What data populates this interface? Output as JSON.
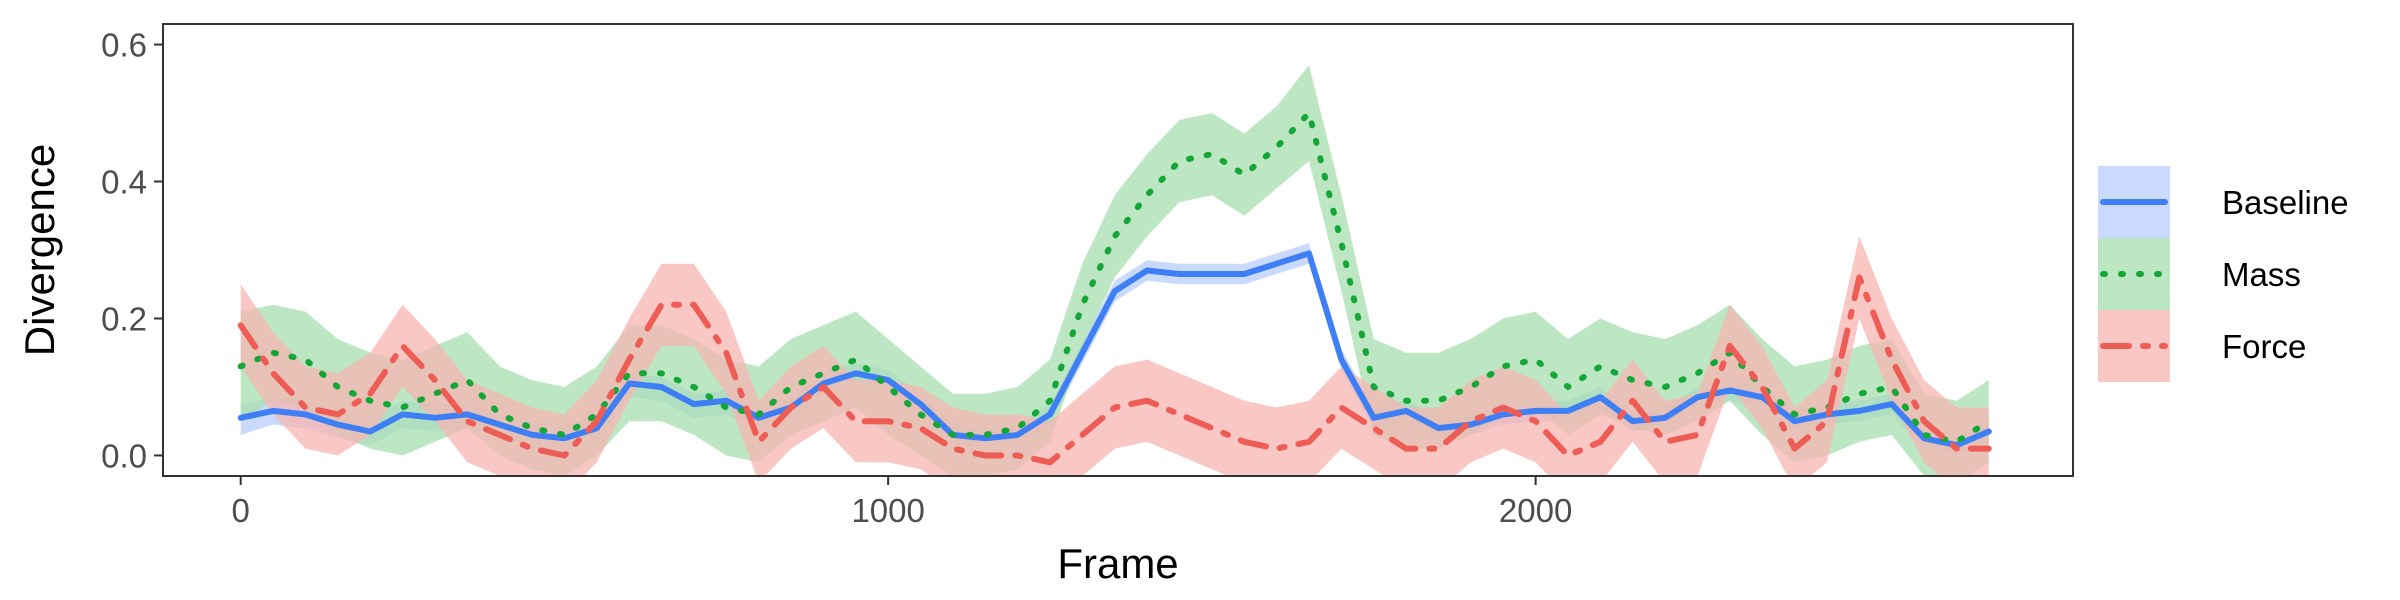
{
  "chart_data": {
    "type": "line",
    "xlabel": "Frame",
    "ylabel": "Divergence",
    "xlim": [
      -120,
      2830
    ],
    "ylim": [
      -0.03,
      0.63
    ],
    "xticks": [
      0,
      1000,
      2000
    ],
    "yticks": [
      0.0,
      0.2,
      0.4,
      0.6
    ],
    "xtick_labels": [
      "0",
      "1000",
      "2000"
    ],
    "ytick_labels": [
      "0.0",
      "0.2",
      "0.4",
      "0.6"
    ],
    "grid": false,
    "legend_position": "right",
    "x": [
      0,
      50,
      100,
      150,
      200,
      250,
      300,
      350,
      400,
      450,
      500,
      550,
      600,
      650,
      700,
      750,
      800,
      850,
      900,
      950,
      1000,
      1050,
      1100,
      1150,
      1200,
      1250,
      1300,
      1350,
      1400,
      1450,
      1500,
      1550,
      1600,
      1650,
      1700,
      1750,
      1800,
      1850,
      1900,
      1950,
      2000,
      2050,
      2100,
      2150,
      2200,
      2250,
      2300,
      2350,
      2400,
      2450,
      2500,
      2550,
      2600,
      2650,
      2700
    ],
    "series": [
      {
        "name": "Baseline",
        "color": "#3f7ff5",
        "band_color": "#b8cdfb",
        "line_style": "solid",
        "values": [
          0.055,
          0.065,
          0.06,
          0.045,
          0.035,
          0.06,
          0.055,
          0.06,
          0.045,
          0.03,
          0.025,
          0.04,
          0.105,
          0.1,
          0.075,
          0.08,
          0.055,
          0.07,
          0.105,
          0.12,
          0.11,
          0.075,
          0.03,
          0.025,
          0.03,
          0.06,
          0.15,
          0.24,
          0.27,
          0.265,
          0.265,
          0.265,
          0.28,
          0.295,
          0.14,
          0.055,
          0.065,
          0.04,
          0.045,
          0.06,
          0.065,
          0.065,
          0.085,
          0.05,
          0.055,
          0.085,
          0.095,
          0.085,
          0.05,
          0.06,
          0.065,
          0.075,
          0.025,
          0.015,
          0.035
        ],
        "lower": [
          0.03,
          0.045,
          0.04,
          0.025,
          0.015,
          0.04,
          0.035,
          0.04,
          0.03,
          0.01,
          0.005,
          0.02,
          0.085,
          0.08,
          0.055,
          0.06,
          0.035,
          0.05,
          0.09,
          0.105,
          0.095,
          0.06,
          0.015,
          0.01,
          0.015,
          0.045,
          0.135,
          0.225,
          0.255,
          0.25,
          0.25,
          0.25,
          0.265,
          0.28,
          0.125,
          0.04,
          0.05,
          0.025,
          0.03,
          0.045,
          0.05,
          0.05,
          0.07,
          0.035,
          0.04,
          0.07,
          0.08,
          0.07,
          0.035,
          0.045,
          0.05,
          0.06,
          0.01,
          0.0,
          0.02
        ],
        "upper": [
          0.075,
          0.085,
          0.08,
          0.065,
          0.055,
          0.08,
          0.075,
          0.08,
          0.06,
          0.05,
          0.045,
          0.06,
          0.12,
          0.115,
          0.09,
          0.095,
          0.07,
          0.085,
          0.12,
          0.135,
          0.125,
          0.09,
          0.045,
          0.04,
          0.045,
          0.075,
          0.165,
          0.255,
          0.285,
          0.28,
          0.28,
          0.28,
          0.295,
          0.31,
          0.155,
          0.07,
          0.08,
          0.055,
          0.06,
          0.075,
          0.08,
          0.08,
          0.1,
          0.065,
          0.07,
          0.1,
          0.11,
          0.1,
          0.065,
          0.075,
          0.08,
          0.09,
          0.04,
          0.03,
          0.05
        ]
      },
      {
        "name": "Mass",
        "color": "#14a637",
        "band_color": "#a6dfad",
        "line_style": "dotted",
        "values": [
          0.13,
          0.15,
          0.14,
          0.1,
          0.08,
          0.07,
          0.09,
          0.11,
          0.06,
          0.04,
          0.03,
          0.06,
          0.12,
          0.12,
          0.1,
          0.07,
          0.06,
          0.1,
          0.12,
          0.14,
          0.1,
          0.06,
          0.03,
          0.03,
          0.04,
          0.08,
          0.22,
          0.32,
          0.38,
          0.43,
          0.44,
          0.41,
          0.45,
          0.5,
          0.31,
          0.1,
          0.08,
          0.08,
          0.1,
          0.13,
          0.14,
          0.1,
          0.13,
          0.11,
          0.1,
          0.12,
          0.15,
          0.1,
          0.06,
          0.07,
          0.09,
          0.1,
          0.03,
          0.02,
          0.05
        ],
        "lower": [
          0.05,
          0.08,
          0.07,
          0.03,
          0.01,
          0.0,
          0.02,
          0.04,
          0.0,
          -0.02,
          -0.03,
          0.0,
          0.05,
          0.05,
          0.03,
          0.0,
          -0.01,
          0.03,
          0.05,
          0.07,
          0.03,
          0.0,
          -0.03,
          -0.03,
          -0.02,
          0.02,
          0.16,
          0.26,
          0.32,
          0.37,
          0.38,
          0.35,
          0.39,
          0.43,
          0.24,
          0.03,
          0.01,
          0.01,
          0.03,
          0.06,
          0.07,
          0.03,
          0.06,
          0.04,
          0.03,
          0.05,
          0.08,
          0.03,
          -0.01,
          0.0,
          0.02,
          0.03,
          -0.03,
          -0.04,
          -0.01
        ],
        "upper": [
          0.21,
          0.22,
          0.21,
          0.17,
          0.15,
          0.14,
          0.16,
          0.18,
          0.13,
          0.11,
          0.1,
          0.13,
          0.19,
          0.19,
          0.17,
          0.14,
          0.13,
          0.17,
          0.19,
          0.21,
          0.17,
          0.13,
          0.09,
          0.09,
          0.1,
          0.14,
          0.28,
          0.38,
          0.44,
          0.49,
          0.5,
          0.47,
          0.51,
          0.57,
          0.38,
          0.17,
          0.15,
          0.15,
          0.17,
          0.2,
          0.21,
          0.17,
          0.2,
          0.18,
          0.17,
          0.19,
          0.22,
          0.17,
          0.13,
          0.14,
          0.16,
          0.17,
          0.09,
          0.08,
          0.11
        ]
      },
      {
        "name": "Force",
        "color": "#ee5c56",
        "band_color": "#f7b6b2",
        "line_style": "dashdot",
        "values": [
          0.19,
          0.12,
          0.07,
          0.06,
          0.09,
          0.16,
          0.11,
          0.05,
          0.03,
          0.01,
          0.0,
          0.05,
          0.14,
          0.22,
          0.22,
          0.15,
          0.02,
          0.07,
          0.1,
          0.05,
          0.05,
          0.04,
          0.01,
          0.0,
          0.0,
          -0.01,
          0.03,
          0.07,
          0.08,
          0.06,
          0.04,
          0.02,
          0.01,
          0.02,
          0.07,
          0.04,
          0.01,
          0.01,
          0.05,
          0.07,
          0.05,
          0.0,
          0.02,
          0.08,
          0.02,
          0.03,
          0.16,
          0.1,
          0.01,
          0.05,
          0.26,
          0.14,
          0.05,
          0.01,
          0.01
        ],
        "lower": [
          0.13,
          0.06,
          0.01,
          0.0,
          0.03,
          0.1,
          0.05,
          -0.01,
          -0.03,
          -0.05,
          -0.06,
          -0.01,
          0.08,
          0.16,
          0.16,
          0.09,
          -0.04,
          0.01,
          0.04,
          -0.01,
          -0.01,
          -0.02,
          -0.05,
          -0.06,
          -0.06,
          -0.07,
          -0.03,
          0.01,
          0.02,
          0.0,
          -0.02,
          -0.04,
          -0.05,
          -0.04,
          0.01,
          -0.02,
          -0.05,
          -0.05,
          -0.01,
          0.01,
          -0.01,
          -0.06,
          -0.04,
          0.02,
          -0.04,
          -0.03,
          0.1,
          0.04,
          -0.05,
          -0.01,
          0.2,
          0.08,
          -0.01,
          -0.05,
          -0.05
        ],
        "upper": [
          0.25,
          0.18,
          0.13,
          0.12,
          0.15,
          0.22,
          0.17,
          0.11,
          0.09,
          0.07,
          0.06,
          0.11,
          0.2,
          0.28,
          0.28,
          0.21,
          0.08,
          0.13,
          0.16,
          0.11,
          0.11,
          0.1,
          0.07,
          0.06,
          0.06,
          0.05,
          0.09,
          0.13,
          0.14,
          0.12,
          0.1,
          0.08,
          0.07,
          0.08,
          0.13,
          0.1,
          0.07,
          0.07,
          0.11,
          0.13,
          0.11,
          0.06,
          0.08,
          0.14,
          0.08,
          0.09,
          0.22,
          0.16,
          0.07,
          0.11,
          0.32,
          0.2,
          0.11,
          0.07,
          0.07
        ]
      }
    ]
  }
}
